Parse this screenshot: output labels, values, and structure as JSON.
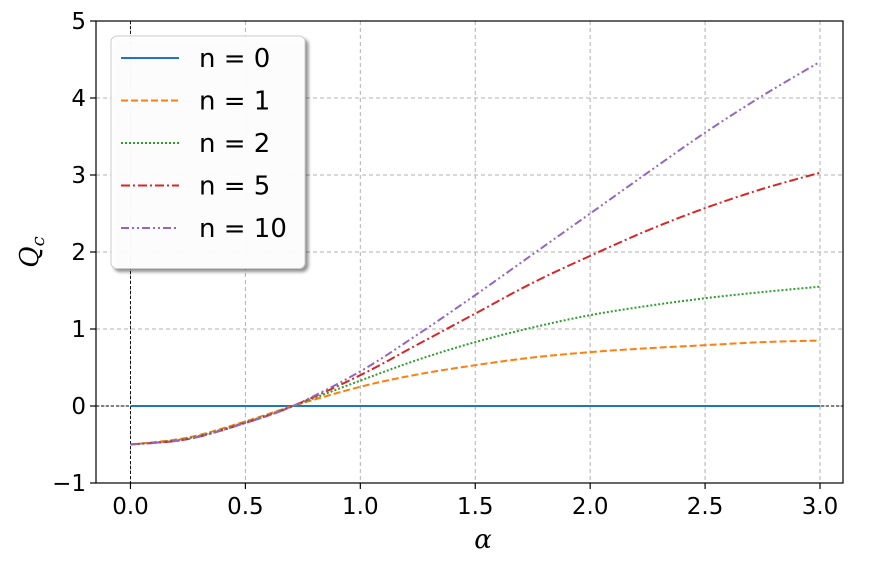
{
  "chart_data": {
    "type": "line",
    "title": "",
    "xlabel": "α",
    "ylabel": "Q",
    "ylabel_subscript": "c",
    "xlim": [
      -0.15,
      3.1
    ],
    "ylim": [
      -1,
      5
    ],
    "xticks": [
      0.0,
      0.5,
      1.0,
      1.5,
      2.0,
      2.5,
      3.0
    ],
    "xtick_labels": [
      "0.0",
      "0.5",
      "1.0",
      "1.5",
      "2.0",
      "2.5",
      "3.0"
    ],
    "yticks": [
      -1,
      0,
      1,
      2,
      3,
      4,
      5
    ],
    "ytick_labels": [
      "−1",
      "0",
      "1",
      "2",
      "3",
      "4",
      "5"
    ],
    "grid": true,
    "reference_lines": {
      "x": 0,
      "y": 0
    },
    "legend_position": "top-left",
    "x": [
      0.0,
      0.25,
      0.5,
      0.707,
      1.0,
      1.25,
      1.5,
      1.75,
      2.0,
      2.25,
      2.5,
      2.75,
      3.0
    ],
    "series": [
      {
        "name": "n = 0",
        "color": "#1f77b4",
        "dash": "solid",
        "values": [
          0,
          0,
          0,
          0,
          0,
          0,
          0,
          0,
          0,
          0,
          0,
          0,
          0
        ]
      },
      {
        "name": "n = 1",
        "color": "#ff7f0e",
        "dash": "dashed",
        "values": [
          -0.5,
          -0.41,
          -0.2,
          0.0,
          0.25,
          0.41,
          0.53,
          0.63,
          0.7,
          0.75,
          0.79,
          0.83,
          0.85
        ]
      },
      {
        "name": "n = 2",
        "color": "#2ca02c",
        "dash": "dotted",
        "values": [
          -0.5,
          -0.42,
          -0.21,
          0.0,
          0.33,
          0.6,
          0.83,
          1.02,
          1.18,
          1.3,
          1.4,
          1.48,
          1.55
        ]
      },
      {
        "name": "n = 5",
        "color": "#d62728",
        "dash": "dashdot",
        "values": [
          -0.5,
          -0.43,
          -0.22,
          0.0,
          0.4,
          0.8,
          1.2,
          1.6,
          1.95,
          2.28,
          2.57,
          2.82,
          3.03
        ]
      },
      {
        "name": "n = 10",
        "color": "#9467bd",
        "dash": "dashdotdot",
        "values": [
          -0.5,
          -0.43,
          -0.22,
          0.0,
          0.45,
          0.93,
          1.44,
          1.97,
          2.5,
          3.03,
          3.55,
          4.03,
          4.47
        ]
      }
    ]
  }
}
